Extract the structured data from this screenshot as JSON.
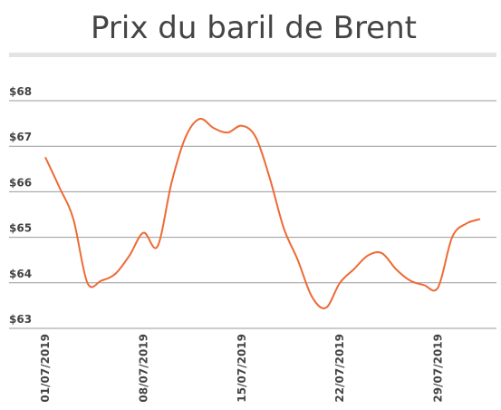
{
  "chart_data": {
    "type": "line",
    "title": "Prix du baril de Brent",
    "categories": [
      "01/07/2019",
      null,
      null,
      null,
      null,
      null,
      null,
      "08/07/2019",
      null,
      null,
      null,
      null,
      null,
      null,
      "15/07/2019",
      null,
      null,
      null,
      null,
      null,
      null,
      "22/07/2019",
      null,
      null,
      null,
      null,
      null,
      null,
      "29/07/2019",
      null,
      null,
      null
    ],
    "values": [
      66.76,
      66.1,
      65.4,
      64.0,
      64.05,
      64.2,
      64.6,
      65.1,
      64.8,
      66.2,
      67.2,
      67.6,
      67.4,
      67.3,
      67.45,
      67.2,
      66.3,
      65.2,
      64.5,
      63.7,
      63.45,
      64.0,
      64.3,
      64.6,
      64.65,
      64.3,
      64.05,
      63.95,
      63.9,
      65.0,
      65.3,
      65.4
    ],
    "color": "#ee6a35",
    "ylim": [
      63,
      68
    ],
    "yticks": [
      {
        "value": 63,
        "label": "$63"
      },
      {
        "value": 64,
        "label": "$64"
      },
      {
        "value": 65,
        "label": "$65"
      },
      {
        "value": 66,
        "label": "$66"
      },
      {
        "value": 67,
        "label": "$67"
      },
      {
        "value": 68,
        "label": "$68"
      }
    ],
    "grid": true
  }
}
